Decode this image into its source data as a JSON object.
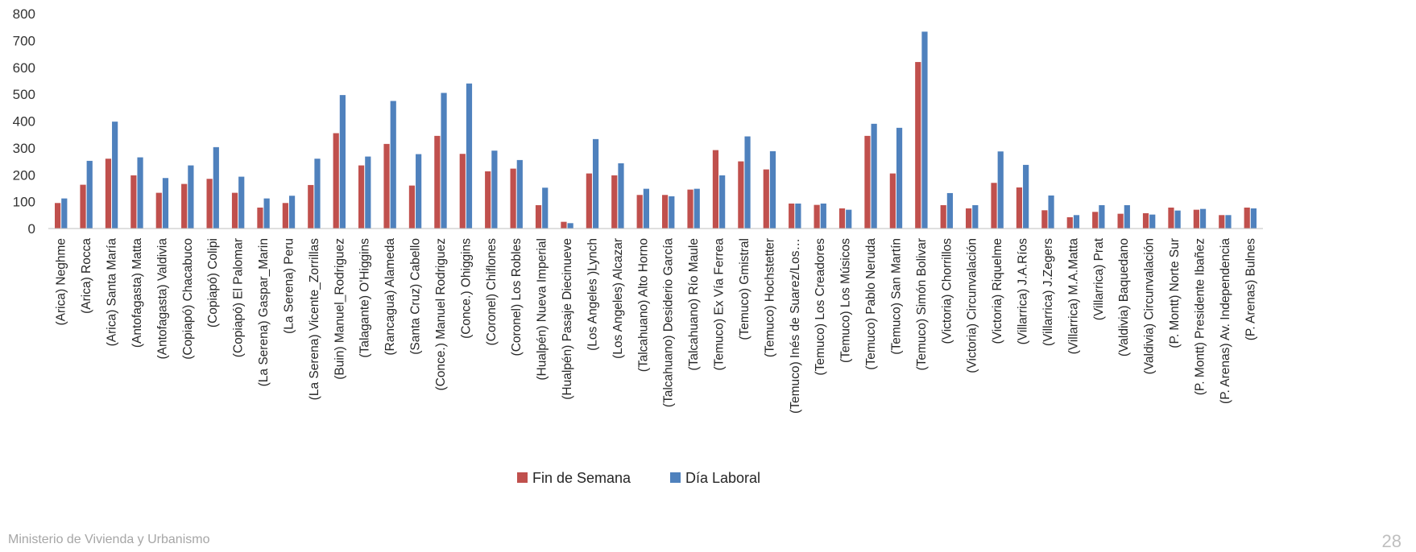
{
  "chart_data": {
    "type": "bar",
    "title": "",
    "xlabel": "",
    "ylabel": "",
    "ylim": [
      0,
      800
    ],
    "yticks": [
      0,
      100,
      200,
      300,
      400,
      500,
      600,
      700,
      800
    ],
    "grid": false,
    "legend_position": "bottom",
    "categories": [
      "(Arica) Neghme",
      "(Arica) Rocca",
      "(Arica) Santa María",
      "(Antofagasta) Matta",
      "(Antofagasta) Valdivia",
      "(Copiapó) Chacabuco",
      "(Copiapó) Colipi",
      "(Copiapó) El Palomar",
      "(La Serena) Gaspar_Marin",
      "(La Serena) Peru",
      "(La Serena) Vicente_Zorrillas",
      "(Buin) Manuel_Rodriguez",
      "(Talagante) O'Higgins",
      "(Rancagua) Alameda",
      "(Santa Cruz) Cabello",
      "(Conce.) Manuel Rodriguez",
      "(Conce.) Ohiggins",
      "(Coronel) Chiflones",
      "(Coronel) Los Robles",
      "(Hualpén) Nueva Imperial",
      "(Hualpén) Pasaje Diecinueve",
      "(Los Angeles )Lynch",
      "(Los Angeles) Alcazar",
      "(Talcahuano) Alto Horno",
      "(Talcahuano) Desiderio García",
      "(Talcahuano) Río Maule",
      "(Temuco) Ex Vía Ferrea",
      "(Temuco) Gmistral",
      "(Temuco) Hochstetter",
      "(Temuco) Inés de Suarez/Los…",
      "(Temuco) Los Creadores",
      "(Temuco) Los Músicos",
      "(Temuco) Pablo Neruda",
      "(Temuco) San Martín",
      "(Temuco) Simón Bolivar",
      "(Victoria) Chorrillos",
      "(Victoria) Circunvalación",
      "(Victoria) Riquelme",
      "(Villarrica) J.A.Ríos",
      "(Villarrica) J.Zegers",
      "(Villarrica) M.A.Matta",
      "(Villarrica) Prat",
      "(Valdivia) Baquedano",
      "(Valdivia) Circunvalación",
      "(P. Montt) Norte Sur",
      "(P. Montt) Presidente Ibañez",
      "(P. Arenas) Av. Independencia",
      "(P. Arenas) Bulnes"
    ],
    "series": [
      {
        "name": "Fin de Semana",
        "color": "#c0504d",
        "values": [
          95,
          163,
          260,
          198,
          133,
          166,
          185,
          133,
          78,
          95,
          162,
          355,
          235,
          315,
          160,
          345,
          278,
          213,
          223,
          87,
          25,
          205,
          198,
          125,
          125,
          145,
          292,
          250,
          220,
          93,
          88,
          75,
          345,
          205,
          620,
          87,
          75,
          170,
          153,
          68,
          42,
          62,
          55,
          57,
          78,
          70,
          50,
          78
        ]
      },
      {
        "name": "Día Laboral",
        "color": "#4f81bd",
        "values": [
          112,
          252,
          398,
          265,
          188,
          235,
          303,
          193,
          112,
          122,
          260,
          497,
          268,
          475,
          277,
          505,
          540,
          290,
          255,
          152,
          20,
          333,
          243,
          148,
          120,
          148,
          198,
          343,
          288,
          93,
          93,
          70,
          390,
          375,
          733,
          132,
          87,
          287,
          237,
          123,
          50,
          87,
          87,
          52,
          67,
          73,
          50,
          75
        ]
      }
    ]
  },
  "footer": {
    "text": "Ministerio de Vivienda y Urbanismo",
    "page_number": "28"
  }
}
